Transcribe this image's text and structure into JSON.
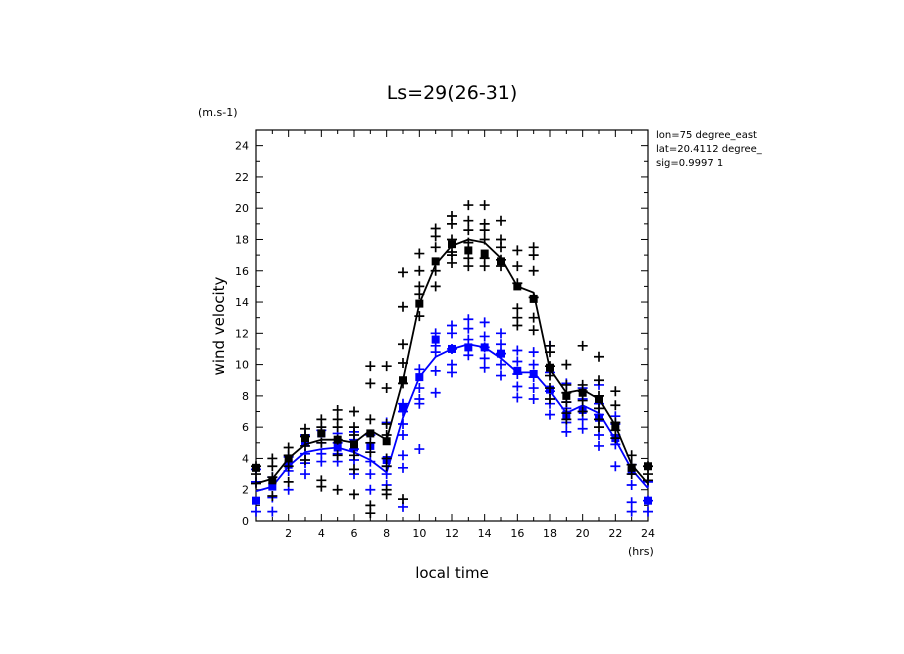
{
  "chart_data": {
    "type": "scatter",
    "title": "Ls=29(26-31)",
    "ylabel": "wind velocity",
    "yunit": "(m.s-1)",
    "xlabel": "local time",
    "xunit": "(hrs)",
    "annotations": [
      "lon=75 degree_east",
      "lat=20.4112 degree_",
      "sig=0.9997 1"
    ],
    "xlim": [
      0,
      24
    ],
    "ylim": [
      0,
      25
    ],
    "xticks": [
      2,
      4,
      6,
      8,
      10,
      12,
      14,
      16,
      18,
      20,
      22,
      24
    ],
    "yticks": [
      0,
      2,
      4,
      6,
      8,
      10,
      12,
      14,
      16,
      18,
      20,
      22,
      24
    ],
    "grid": false,
    "colors": {
      "black": "#000000",
      "blue": "#0000ff"
    },
    "series": [
      {
        "color": "#000000",
        "line": {
          "x": [
            0,
            1,
            2,
            3,
            4,
            5,
            6,
            7,
            8,
            9,
            10,
            11,
            12,
            13,
            14,
            15,
            16,
            17,
            18,
            19,
            20,
            21,
            22,
            23,
            24
          ],
          "y": [
            2.4,
            2.7,
            4.0,
            4.9,
            5.2,
            5.2,
            5.0,
            5.8,
            5.2,
            9.0,
            13.9,
            16.4,
            17.6,
            18.0,
            17.8,
            16.8,
            15.0,
            14.6,
            9.7,
            8.2,
            8.4,
            7.8,
            6.1,
            3.6,
            2.4
          ]
        },
        "means": [
          [
            0,
            3.4
          ],
          [
            1,
            2.6
          ],
          [
            2,
            4.0
          ],
          [
            3,
            5.3
          ],
          [
            4,
            5.6
          ],
          [
            5,
            5.2
          ],
          [
            6,
            4.9
          ],
          [
            7,
            5.6
          ],
          [
            8,
            5.1
          ],
          [
            9,
            9.0
          ],
          [
            10,
            13.9
          ],
          [
            11,
            16.6
          ],
          [
            12,
            17.7
          ],
          [
            13,
            17.3
          ],
          [
            14,
            17.1
          ],
          [
            15,
            16.6
          ],
          [
            16,
            15.0
          ],
          [
            17,
            14.2
          ],
          [
            18,
            9.8
          ],
          [
            19,
            8.0
          ],
          [
            20,
            8.2
          ],
          [
            21,
            7.8
          ],
          [
            22,
            6.1
          ],
          [
            23,
            3.4
          ],
          [
            24,
            3.5
          ]
        ],
        "points": [
          [
            0,
            3.5
          ],
          [
            0,
            3.0
          ],
          [
            0,
            2.4
          ],
          [
            1,
            4.0
          ],
          [
            1,
            3.5
          ],
          [
            1,
            2.8
          ],
          [
            1,
            1.6
          ],
          [
            2,
            4.7
          ],
          [
            2,
            4.2
          ],
          [
            2,
            3.5
          ],
          [
            2,
            2.5
          ],
          [
            3,
            5.9
          ],
          [
            3,
            5.4
          ],
          [
            3,
            4.8
          ],
          [
            3,
            3.9
          ],
          [
            4,
            6.5
          ],
          [
            4,
            6.0
          ],
          [
            4,
            5.0
          ],
          [
            4,
            2.6
          ],
          [
            4,
            2.2
          ],
          [
            5,
            7.1
          ],
          [
            5,
            6.5
          ],
          [
            5,
            6.0
          ],
          [
            5,
            5.2
          ],
          [
            5,
            4.2
          ],
          [
            5,
            2.0
          ],
          [
            6,
            7.0
          ],
          [
            6,
            6.0
          ],
          [
            6,
            5.5
          ],
          [
            6,
            4.2
          ],
          [
            6,
            3.3
          ],
          [
            6,
            1.7
          ],
          [
            7,
            9.9
          ],
          [
            7,
            8.8
          ],
          [
            7,
            6.5
          ],
          [
            7,
            5.0
          ],
          [
            7,
            4.4
          ],
          [
            7,
            1.0
          ],
          [
            7,
            0.5
          ],
          [
            8,
            9.9
          ],
          [
            8,
            8.5
          ],
          [
            8,
            6.2
          ],
          [
            8,
            5.5
          ],
          [
            8,
            4.0
          ],
          [
            8,
            3.5
          ],
          [
            8,
            2.0
          ],
          [
            8,
            1.7
          ],
          [
            9,
            15.9
          ],
          [
            9,
            13.7
          ],
          [
            9,
            11.3
          ],
          [
            9,
            10.1
          ],
          [
            9,
            8.8
          ],
          [
            9,
            1.4
          ],
          [
            10,
            17.1
          ],
          [
            10,
            16.0
          ],
          [
            10,
            15.0
          ],
          [
            10,
            14.5
          ],
          [
            10,
            13.1
          ],
          [
            11,
            18.7
          ],
          [
            11,
            18.2
          ],
          [
            11,
            17.5
          ],
          [
            11,
            16.0
          ],
          [
            11,
            15.0
          ],
          [
            12,
            19.5
          ],
          [
            12,
            19.0
          ],
          [
            12,
            18.0
          ],
          [
            12,
            17.2
          ],
          [
            12,
            17.0
          ],
          [
            12,
            16.5
          ],
          [
            13,
            20.2
          ],
          [
            13,
            19.2
          ],
          [
            13,
            18.6
          ],
          [
            13,
            17.8
          ],
          [
            13,
            16.8
          ],
          [
            13,
            16.3
          ],
          [
            14,
            20.2
          ],
          [
            14,
            19.0
          ],
          [
            14,
            18.6
          ],
          [
            14,
            18.0
          ],
          [
            14,
            16.8
          ],
          [
            14,
            16.3
          ],
          [
            15,
            19.2
          ],
          [
            15,
            18.0
          ],
          [
            15,
            17.5
          ],
          [
            15,
            16.7
          ],
          [
            15,
            16.3
          ],
          [
            16,
            17.3
          ],
          [
            16,
            16.3
          ],
          [
            16,
            15.2
          ],
          [
            16,
            13.6
          ],
          [
            16,
            13.0
          ],
          [
            16,
            12.5
          ],
          [
            17,
            17.5
          ],
          [
            17,
            17.0
          ],
          [
            17,
            16.0
          ],
          [
            17,
            14.3
          ],
          [
            17,
            13.0
          ],
          [
            17,
            12.2
          ],
          [
            18,
            11.2
          ],
          [
            18,
            10.8
          ],
          [
            18,
            9.9
          ],
          [
            18,
            9.3
          ],
          [
            18,
            8.5
          ],
          [
            18,
            7.8
          ],
          [
            19,
            10.0
          ],
          [
            19,
            8.7
          ],
          [
            19,
            8.2
          ],
          [
            19,
            7.6
          ],
          [
            19,
            6.9
          ],
          [
            19,
            6.5
          ],
          [
            20,
            11.2
          ],
          [
            20,
            8.7
          ],
          [
            20,
            8.3
          ],
          [
            20,
            7.7
          ],
          [
            20,
            7.0
          ],
          [
            21,
            10.5
          ],
          [
            21,
            9.0
          ],
          [
            21,
            8.0
          ],
          [
            21,
            7.2
          ],
          [
            21,
            6.5
          ],
          [
            21,
            6.0
          ],
          [
            22,
            8.3
          ],
          [
            22,
            7.4
          ],
          [
            22,
            6.3
          ],
          [
            22,
            5.8
          ],
          [
            22,
            5.3
          ],
          [
            23,
            4.2
          ],
          [
            23,
            3.6
          ],
          [
            23,
            3.0
          ],
          [
            24,
            3.5
          ],
          [
            24,
            3.0
          ],
          [
            24,
            2.6
          ]
        ]
      },
      {
        "color": "#0000ff",
        "line": {
          "x": [
            0,
            1,
            2,
            3,
            4,
            5,
            6,
            7,
            8,
            9,
            10,
            11,
            12,
            13,
            14,
            15,
            16,
            17,
            18,
            19,
            20,
            21,
            22,
            23,
            24
          ],
          "y": [
            1.9,
            2.2,
            3.5,
            4.4,
            4.6,
            4.7,
            4.4,
            3.9,
            3.1,
            6.6,
            9.2,
            10.5,
            11.0,
            11.3,
            11.1,
            10.4,
            9.5,
            9.5,
            8.3,
            6.9,
            7.4,
            6.9,
            5.2,
            3.3,
            2.1
          ]
        },
        "means": [
          [
            0,
            1.3
          ],
          [
            1,
            2.2
          ],
          [
            2,
            3.6
          ],
          [
            3,
            5.0
          ],
          [
            4,
            5.6
          ],
          [
            5,
            4.7
          ],
          [
            6,
            4.7
          ],
          [
            7,
            4.8
          ],
          [
            8,
            3.9
          ],
          [
            9,
            7.2
          ],
          [
            10,
            9.2
          ],
          [
            11,
            11.6
          ],
          [
            12,
            11.0
          ],
          [
            13,
            11.1
          ],
          [
            14,
            11.1
          ],
          [
            15,
            10.7
          ],
          [
            16,
            9.6
          ],
          [
            17,
            9.4
          ],
          [
            18,
            8.4
          ],
          [
            19,
            6.8
          ],
          [
            20,
            7.1
          ],
          [
            21,
            6.6
          ],
          [
            22,
            5.3
          ],
          [
            23,
            3.2
          ],
          [
            24,
            1.3
          ]
        ],
        "points": [
          [
            0,
            3.3
          ],
          [
            0,
            2.5
          ],
          [
            0,
            0.6
          ],
          [
            1,
            2.8
          ],
          [
            1,
            1.5
          ],
          [
            1,
            0.6
          ],
          [
            2,
            4.1
          ],
          [
            2,
            3.2
          ],
          [
            2,
            2.0
          ],
          [
            3,
            5.5
          ],
          [
            3,
            4.3
          ],
          [
            3,
            3.7
          ],
          [
            3,
            3.0
          ],
          [
            4,
            5.8
          ],
          [
            4,
            5.0
          ],
          [
            4,
            4.3
          ],
          [
            4,
            3.8
          ],
          [
            5,
            5.6
          ],
          [
            5,
            5.0
          ],
          [
            5,
            4.3
          ],
          [
            5,
            3.8
          ],
          [
            6,
            5.7
          ],
          [
            6,
            5.2
          ],
          [
            6,
            4.6
          ],
          [
            6,
            3.9
          ],
          [
            6,
            3.0
          ],
          [
            7,
            5.5
          ],
          [
            7,
            4.4
          ],
          [
            7,
            3.8
          ],
          [
            7,
            3.0
          ],
          [
            7,
            2.0
          ],
          [
            8,
            6.3
          ],
          [
            8,
            4.0
          ],
          [
            8,
            3.5
          ],
          [
            8,
            3.0
          ],
          [
            8,
            2.3
          ],
          [
            9,
            7.5
          ],
          [
            9,
            7.0
          ],
          [
            9,
            6.2
          ],
          [
            9,
            5.5
          ],
          [
            9,
            4.2
          ],
          [
            9,
            3.4
          ],
          [
            9,
            0.9
          ],
          [
            10,
            9.7
          ],
          [
            10,
            8.5
          ],
          [
            10,
            7.8
          ],
          [
            10,
            7.5
          ],
          [
            10,
            4.6
          ],
          [
            11,
            12.0
          ],
          [
            11,
            11.2
          ],
          [
            11,
            10.8
          ],
          [
            11,
            9.6
          ],
          [
            11,
            8.2
          ],
          [
            12,
            12.5
          ],
          [
            12,
            12.0
          ],
          [
            12,
            11.0
          ],
          [
            12,
            10.0
          ],
          [
            12,
            9.5
          ],
          [
            13,
            12.9
          ],
          [
            13,
            12.3
          ],
          [
            13,
            11.6
          ],
          [
            13,
            10.6
          ],
          [
            14,
            12.7
          ],
          [
            14,
            11.8
          ],
          [
            14,
            11.1
          ],
          [
            14,
            10.4
          ],
          [
            14,
            9.8
          ],
          [
            15,
            12.0
          ],
          [
            15,
            11.3
          ],
          [
            15,
            10.7
          ],
          [
            15,
            10.0
          ],
          [
            15,
            9.3
          ],
          [
            16,
            10.9
          ],
          [
            16,
            10.2
          ],
          [
            16,
            9.4
          ],
          [
            16,
            8.6
          ],
          [
            16,
            7.9
          ],
          [
            17,
            10.8
          ],
          [
            17,
            10.0
          ],
          [
            17,
            9.2
          ],
          [
            17,
            8.5
          ],
          [
            17,
            7.8
          ],
          [
            18,
            11.2
          ],
          [
            18,
            9.5
          ],
          [
            18,
            8.3
          ],
          [
            18,
            7.5
          ],
          [
            18,
            6.8
          ],
          [
            19,
            8.8
          ],
          [
            19,
            7.6
          ],
          [
            19,
            7.2
          ],
          [
            19,
            6.3
          ],
          [
            19,
            5.7
          ],
          [
            20,
            8.5
          ],
          [
            20,
            7.8
          ],
          [
            20,
            7.0
          ],
          [
            20,
            6.5
          ],
          [
            20,
            5.9
          ],
          [
            21,
            8.7
          ],
          [
            21,
            7.5
          ],
          [
            21,
            6.8
          ],
          [
            21,
            5.5
          ],
          [
            21,
            4.8
          ],
          [
            22,
            6.7
          ],
          [
            22,
            6.2
          ],
          [
            22,
            5.5
          ],
          [
            22,
            4.9
          ],
          [
            22,
            3.5
          ],
          [
            23,
            3.6
          ],
          [
            23,
            2.3
          ],
          [
            23,
            1.2
          ],
          [
            23,
            0.6
          ],
          [
            24,
            2.5
          ],
          [
            24,
            1.3
          ],
          [
            24,
            0.6
          ]
        ]
      }
    ]
  }
}
